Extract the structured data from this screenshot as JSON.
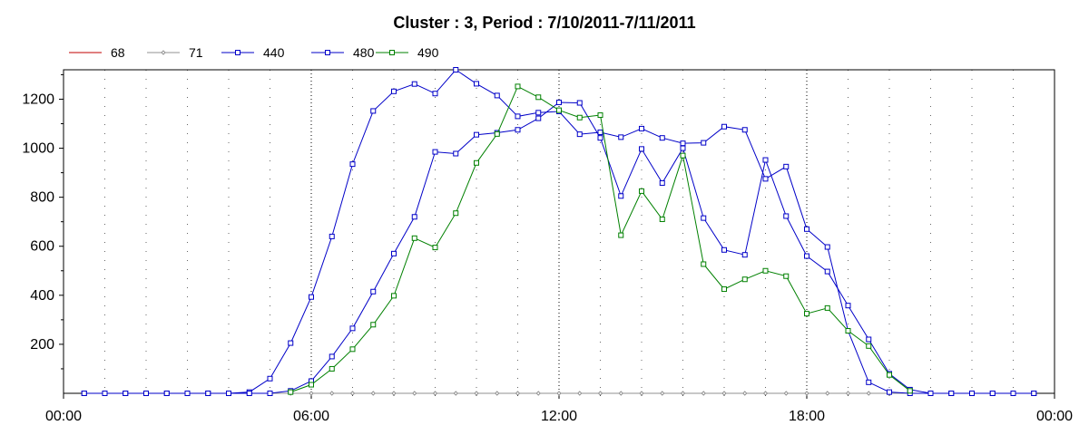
{
  "chart_data": {
    "type": "line",
    "title": "Cluster : 3, Period : 7/10/2011-7/11/2011",
    "xlabel": "",
    "ylabel": "",
    "xlim": [
      0,
      24
    ],
    "ylim": [
      0,
      1320
    ],
    "x_ticks": [
      0,
      6,
      12,
      18,
      24
    ],
    "x_tick_labels": [
      "00:00",
      "06:00",
      "12:00",
      "18:00",
      "00:00"
    ],
    "y_ticks": [
      200,
      400,
      600,
      800,
      1000,
      1200
    ],
    "y_tick_labels": [
      "200",
      "400",
      "600",
      "800",
      "1000",
      "1200"
    ],
    "grid": true,
    "legend_position": "top-left",
    "series": [
      {
        "name": "68",
        "color": "#c00000",
        "marker": "none",
        "x": [],
        "y": []
      },
      {
        "name": "71",
        "color": "#909090",
        "marker": "diamond",
        "x": [
          0.5,
          1,
          1.5,
          2,
          2.5,
          3,
          3.5,
          4,
          4.5,
          5,
          5.5,
          6,
          6.5,
          7,
          7.5,
          8,
          8.5,
          9,
          9.5,
          10,
          10.5,
          11,
          11.5,
          12,
          12.5,
          13,
          13.5,
          14,
          14.5,
          15,
          15.5,
          16,
          16.5,
          17,
          17.5,
          18,
          18.5,
          19,
          19.5,
          20,
          20.5,
          21,
          21.5,
          22,
          22.5,
          23,
          23.5
        ],
        "y": [
          0,
          0,
          0,
          0,
          0,
          0,
          0,
          0,
          0,
          0,
          0,
          0,
          0,
          0,
          0,
          0,
          0,
          0,
          0,
          0,
          0,
          0,
          0,
          0,
          0,
          0,
          0,
          0,
          0,
          0,
          0,
          0,
          0,
          0,
          0,
          0,
          0,
          0,
          0,
          0,
          0,
          0,
          0,
          0,
          0,
          0,
          0
        ]
      },
      {
        "name": "440",
        "color": "#0000c8",
        "marker": "square",
        "x": [
          0.5,
          1,
          1.5,
          2,
          2.5,
          3,
          3.5,
          4,
          4.5,
          5,
          5.5,
          6,
          6.5,
          7,
          7.5,
          8,
          8.5,
          9,
          9.5,
          10,
          10.5,
          11,
          11.5,
          12,
          12.5,
          13,
          13.5,
          14,
          14.5,
          15,
          15.5,
          16,
          16.5,
          17,
          17.5,
          18,
          18.5,
          19,
          19.5,
          20,
          20.5,
          21,
          21.5,
          22,
          22.5,
          23,
          23.5
        ],
        "y": [
          0,
          0,
          0,
          0,
          0,
          0,
          0,
          0,
          5,
          60,
          205,
          393,
          640,
          935,
          1152,
          1232,
          1262,
          1223,
          1320,
          1263,
          1215,
          1130,
          1145,
          1150,
          1057,
          1065,
          1045,
          1080,
          1042,
          1020,
          1022,
          1088,
          1075,
          875,
          925,
          670,
          597,
          255,
          45,
          5,
          0,
          0,
          0,
          0,
          0,
          0,
          0
        ]
      },
      {
        "name": "480",
        "color": "#0000c8",
        "marker": "square",
        "x": [
          0.5,
          1,
          1.5,
          2,
          2.5,
          3,
          3.5,
          4,
          4.5,
          5,
          5.5,
          6,
          6.5,
          7,
          7.5,
          8,
          8.5,
          9,
          9.5,
          10,
          10.5,
          11,
          11.5,
          12,
          12.5,
          13,
          13.5,
          14,
          14.5,
          15,
          15.5,
          16,
          16.5,
          17,
          17.5,
          18,
          18.5,
          19,
          19.5,
          20,
          20.5,
          21,
          21.5,
          22,
          22.5,
          23,
          23.5
        ],
        "y": [
          0,
          0,
          0,
          0,
          0,
          0,
          0,
          0,
          0,
          0,
          10,
          50,
          150,
          265,
          415,
          570,
          720,
          985,
          978,
          1055,
          1063,
          1075,
          1122,
          1187,
          1185,
          1042,
          805,
          997,
          858,
          1000,
          715,
          585,
          565,
          952,
          723,
          560,
          497,
          358,
          220,
          80,
          15,
          0,
          0,
          0,
          0,
          0,
          0
        ]
      },
      {
        "name": "490",
        "color": "#008000",
        "marker": "square",
        "x": [
          5.5,
          6,
          6.5,
          7,
          7.5,
          8,
          8.5,
          9,
          9.5,
          10,
          10.5,
          11,
          11.5,
          12,
          12.5,
          13,
          13.5,
          14,
          14.5,
          15,
          15.5,
          16,
          16.5,
          17,
          17.5,
          18,
          18.5,
          19,
          19.5,
          20,
          20.5
        ],
        "y": [
          5,
          35,
          100,
          180,
          280,
          398,
          633,
          595,
          735,
          940,
          1058,
          1252,
          1208,
          1155,
          1125,
          1135,
          645,
          825,
          710,
          970,
          527,
          425,
          465,
          500,
          478,
          325,
          348,
          255,
          193,
          75,
          10
        ]
      }
    ]
  }
}
